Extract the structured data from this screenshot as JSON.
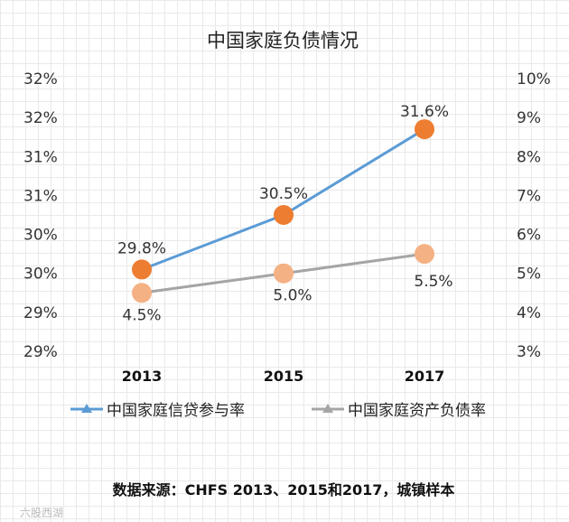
{
  "chart_data": {
    "type": "line",
    "title": "中国家庭负债情况",
    "categories": [
      "2013",
      "2015",
      "2017"
    ],
    "left_axis": {
      "ticks": [
        "32%",
        "32%",
        "31%",
        "31%",
        "30%",
        "30%",
        "29%",
        "29%"
      ],
      "ylim": [
        28.75,
        32.25
      ]
    },
    "right_axis": {
      "ticks": [
        "10%",
        "9%",
        "8%",
        "7%",
        "6%",
        "5%",
        "4%",
        "3%"
      ],
      "ylim": [
        3,
        10
      ]
    },
    "series": [
      {
        "name": "中国家庭信贷参与率",
        "axis": "left",
        "values": [
          29.8,
          30.5,
          31.6
        ],
        "labels": [
          "29.8%",
          "30.5%",
          "31.6%"
        ],
        "line_color": "#5b9bd5",
        "marker_color": "#ed7d31"
      },
      {
        "name": "中国家庭资产负债率",
        "axis": "right",
        "values": [
          4.5,
          5.0,
          5.5
        ],
        "labels": [
          "4.5%",
          "5.0%",
          "5.5%"
        ],
        "line_color": "#a5a5a5",
        "marker_color": "#f4b183"
      }
    ],
    "legend_position": "bottom"
  },
  "source_note": "数据来源：CHFS 2013、2015和2017，城镇样本",
  "watermark": "六股西湖"
}
